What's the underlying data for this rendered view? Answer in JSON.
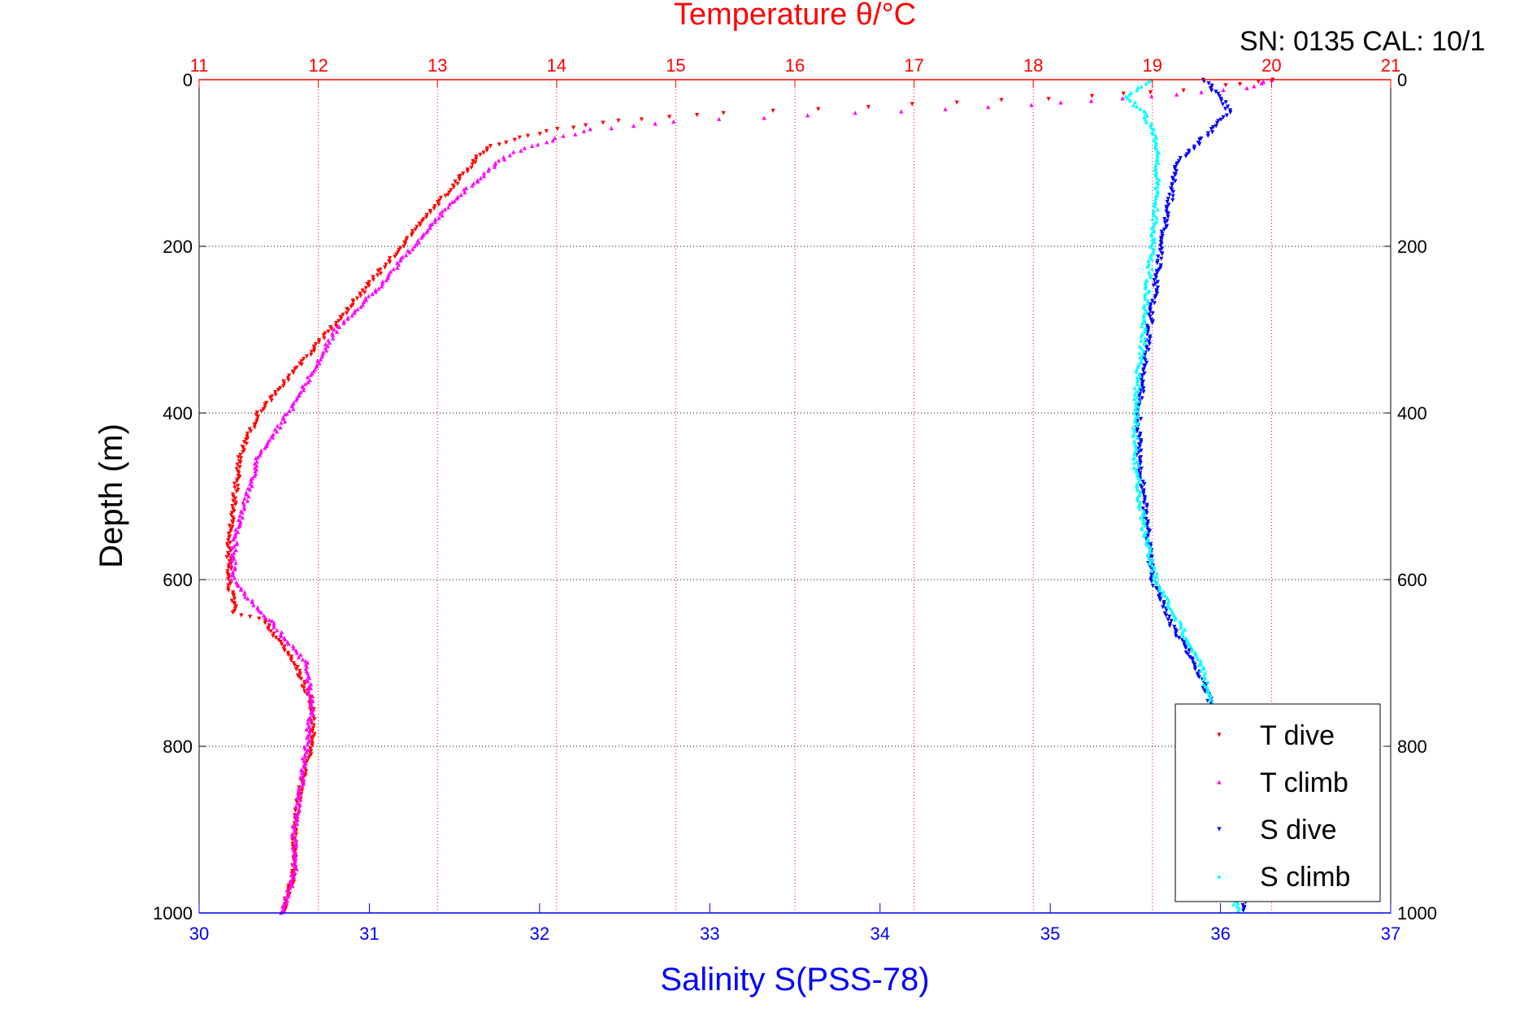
{
  "chart_data": {
    "type": "scatter",
    "title": "Temperature θ/°C",
    "annotation": "SN: 0135  CAL: 10/1",
    "xlabel": "Salinity S(PSS-78)",
    "ylabel": "Depth (m)",
    "x_bottom": {
      "label": "Salinity S(PSS-78)",
      "lim": [
        30,
        37
      ],
      "ticks": [
        "30",
        "31",
        "32",
        "33",
        "34",
        "35",
        "36",
        "37"
      ],
      "color": "#0000ff"
    },
    "x_top": {
      "label": "Temperature θ/°C",
      "lim": [
        11,
        21
      ],
      "ticks": [
        "11",
        "12",
        "13",
        "14",
        "15",
        "16",
        "17",
        "18",
        "19",
        "20",
        "21"
      ],
      "color": "#ff0000"
    },
    "y": {
      "lim": [
        0,
        1000
      ],
      "reversed": true,
      "ticks": [
        "0",
        "200",
        "400",
        "600",
        "800",
        "1000"
      ],
      "tick_values": [
        0,
        200,
        400,
        600,
        800,
        1000
      ]
    },
    "grid": true,
    "legend_position": "bottom-right",
    "series": [
      {
        "name": "T dive",
        "axis": "temperature",
        "marker": "triangle-down",
        "color": "#ff0000",
        "depth": [
          0,
          10,
          20,
          30,
          40,
          50,
          60,
          70,
          80,
          90,
          100,
          150,
          200,
          250,
          300,
          350,
          400,
          450,
          500,
          550,
          600,
          640,
          650,
          700,
          750,
          800,
          850,
          900,
          950,
          1000
        ],
        "values": [
          20.0,
          19.5,
          18.5,
          17.0,
          15.4,
          14.5,
          14.0,
          13.7,
          13.45,
          13.35,
          13.3,
          13.0,
          12.7,
          12.4,
          12.1,
          11.8,
          11.5,
          11.35,
          11.3,
          11.25,
          11.25,
          11.3,
          11.55,
          11.8,
          11.95,
          11.95,
          11.85,
          11.8,
          11.8,
          11.7
        ]
      },
      {
        "name": "T climb",
        "axis": "temperature",
        "marker": "triangle-up",
        "color": "#ff00ff",
        "depth": [
          0,
          10,
          20,
          30,
          40,
          50,
          60,
          70,
          80,
          90,
          100,
          150,
          200,
          250,
          300,
          350,
          400,
          450,
          500,
          550,
          600,
          620,
          650,
          700,
          750,
          800,
          850,
          900,
          950,
          1000
        ],
        "values": [
          20.0,
          19.8,
          19.0,
          18.0,
          16.5,
          15.0,
          14.3,
          14.0,
          13.8,
          13.6,
          13.5,
          13.1,
          12.8,
          12.5,
          12.15,
          11.95,
          11.75,
          11.5,
          11.4,
          11.3,
          11.28,
          11.4,
          11.6,
          11.9,
          11.95,
          11.9,
          11.85,
          11.8,
          11.8,
          11.7
        ]
      },
      {
        "name": "S dive",
        "axis": "salinity",
        "marker": "triangle-down",
        "color": "#0000ff",
        "depth": [
          0,
          20,
          40,
          60,
          80,
          100,
          150,
          200,
          250,
          300,
          350,
          400,
          450,
          500,
          550,
          600,
          650,
          700,
          750,
          800,
          850,
          900,
          950,
          1000
        ],
        "values": [
          35.9,
          36.0,
          36.05,
          35.95,
          35.85,
          35.75,
          35.7,
          35.65,
          35.62,
          35.58,
          35.55,
          35.52,
          35.52,
          35.55,
          35.58,
          35.6,
          35.7,
          35.85,
          35.95,
          36.0,
          36.02,
          36.05,
          36.1,
          36.15
        ]
      },
      {
        "name": "S climb",
        "axis": "salinity",
        "marker": "triangle-up",
        "color": "#00ffff",
        "depth": [
          0,
          20,
          40,
          60,
          80,
          100,
          150,
          200,
          250,
          300,
          350,
          400,
          450,
          500,
          550,
          600,
          650,
          700,
          750,
          800,
          850,
          900,
          950,
          1000
        ],
        "values": [
          35.6,
          35.45,
          35.55,
          35.6,
          35.62,
          35.63,
          35.62,
          35.6,
          35.57,
          35.55,
          35.52,
          35.5,
          35.5,
          35.52,
          35.56,
          35.62,
          35.75,
          35.88,
          35.95,
          35.98,
          36.0,
          36.02,
          36.05,
          36.1
        ]
      }
    ]
  }
}
